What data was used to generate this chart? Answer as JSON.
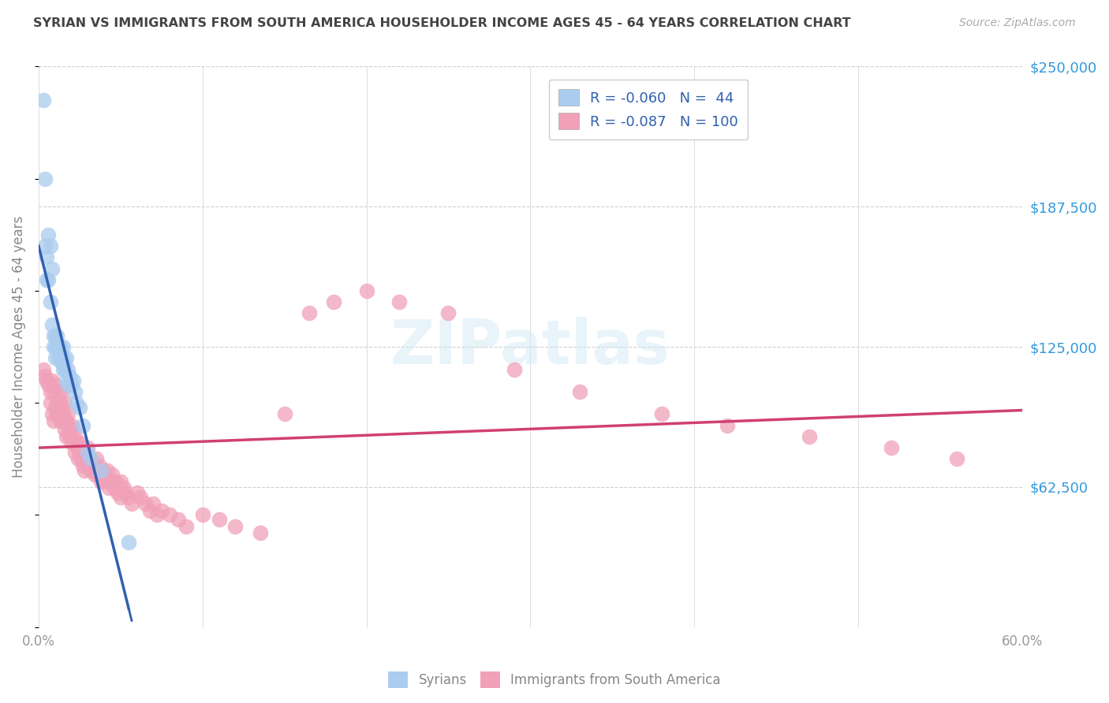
{
  "title": "SYRIAN VS IMMIGRANTS FROM SOUTH AMERICA HOUSEHOLDER INCOME AGES 45 - 64 YEARS CORRELATION CHART",
  "source": "Source: ZipAtlas.com",
  "ylabel": "Householder Income Ages 45 - 64 years",
  "xlim": [
    0,
    0.6
  ],
  "ylim": [
    0,
    250000
  ],
  "yticks": [
    0,
    62500,
    125000,
    187500,
    250000
  ],
  "ytick_labels": [
    "",
    "$62,500",
    "$125,000",
    "$187,500",
    "$250,000"
  ],
  "xticks": [
    0.0,
    0.1,
    0.2,
    0.3,
    0.4,
    0.5,
    0.6
  ],
  "xtick_labels": [
    "0.0%",
    "",
    "",
    "",
    "",
    "",
    "60.0%"
  ],
  "background_color": "#ffffff",
  "grid_color": "#d0d0d0",
  "legend_R_blue": "-0.060",
  "legend_N_blue": "44",
  "legend_R_pink": "-0.087",
  "legend_N_pink": "100",
  "blue_color": "#aaccee",
  "pink_color": "#f0a0b8",
  "blue_line_color": "#3060b0",
  "pink_line_color": "#d04070",
  "title_color": "#444444",
  "right_label_color": "#3399dd",
  "syrians_x": [
    0.003,
    0.004,
    0.004,
    0.005,
    0.005,
    0.006,
    0.006,
    0.007,
    0.007,
    0.008,
    0.008,
    0.009,
    0.009,
    0.01,
    0.01,
    0.01,
    0.011,
    0.011,
    0.012,
    0.012,
    0.013,
    0.013,
    0.014,
    0.014,
    0.015,
    0.015,
    0.015,
    0.016,
    0.016,
    0.017,
    0.017,
    0.018,
    0.018,
    0.019,
    0.02,
    0.021,
    0.022,
    0.023,
    0.025,
    0.027,
    0.03,
    0.032,
    0.038,
    0.055
  ],
  "syrians_y": [
    235000,
    200000,
    170000,
    165000,
    155000,
    175000,
    155000,
    170000,
    145000,
    160000,
    135000,
    125000,
    130000,
    125000,
    120000,
    130000,
    125000,
    130000,
    120000,
    125000,
    125000,
    120000,
    120000,
    118000,
    115000,
    125000,
    120000,
    118000,
    115000,
    120000,
    110000,
    115000,
    108000,
    112000,
    108000,
    110000,
    105000,
    100000,
    98000,
    90000,
    78000,
    75000,
    70000,
    38000
  ],
  "south_america_x": [
    0.003,
    0.004,
    0.005,
    0.006,
    0.007,
    0.007,
    0.008,
    0.008,
    0.009,
    0.009,
    0.01,
    0.01,
    0.011,
    0.011,
    0.012,
    0.012,
    0.013,
    0.013,
    0.014,
    0.014,
    0.015,
    0.015,
    0.016,
    0.016,
    0.017,
    0.017,
    0.018,
    0.018,
    0.019,
    0.019,
    0.02,
    0.02,
    0.021,
    0.022,
    0.022,
    0.023,
    0.024,
    0.024,
    0.025,
    0.025,
    0.026,
    0.027,
    0.027,
    0.028,
    0.028,
    0.029,
    0.03,
    0.03,
    0.031,
    0.032,
    0.033,
    0.034,
    0.035,
    0.035,
    0.036,
    0.037,
    0.038,
    0.039,
    0.04,
    0.041,
    0.042,
    0.043,
    0.044,
    0.045,
    0.046,
    0.047,
    0.048,
    0.05,
    0.05,
    0.052,
    0.053,
    0.055,
    0.057,
    0.06,
    0.062,
    0.065,
    0.068,
    0.07,
    0.072,
    0.075,
    0.08,
    0.085,
    0.09,
    0.1,
    0.11,
    0.12,
    0.135,
    0.15,
    0.165,
    0.18,
    0.2,
    0.22,
    0.25,
    0.29,
    0.33,
    0.38,
    0.42,
    0.47,
    0.52,
    0.56
  ],
  "south_america_y": [
    115000,
    112000,
    110000,
    108000,
    105000,
    100000,
    110000,
    95000,
    105000,
    92000,
    108000,
    98000,
    100000,
    95000,
    105000,
    98000,
    100000,
    92000,
    98000,
    105000,
    95000,
    92000,
    100000,
    88000,
    92000,
    85000,
    90000,
    95000,
    88000,
    85000,
    90000,
    82000,
    88000,
    85000,
    78000,
    82000,
    80000,
    75000,
    82000,
    78000,
    75000,
    80000,
    72000,
    78000,
    70000,
    75000,
    80000,
    72000,
    75000,
    70000,
    72000,
    68000,
    75000,
    70000,
    68000,
    72000,
    65000,
    70000,
    68000,
    65000,
    70000,
    62000,
    65000,
    68000,
    62000,
    65000,
    60000,
    65000,
    58000,
    62000,
    60000,
    58000,
    55000,
    60000,
    58000,
    55000,
    52000,
    55000,
    50000,
    52000,
    50000,
    48000,
    45000,
    50000,
    48000,
    45000,
    42000,
    95000,
    140000,
    145000,
    150000,
    145000,
    140000,
    115000,
    105000,
    95000,
    90000,
    85000,
    80000,
    75000
  ]
}
